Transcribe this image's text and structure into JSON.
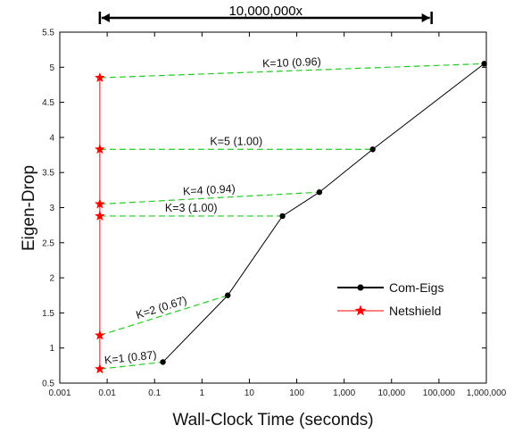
{
  "chart_data": {
    "type": "line",
    "title": "",
    "xlabel": "Wall-Clock Time (seconds)",
    "ylabel": "Eigen-Drop",
    "xscale": "log",
    "xlim": [
      0.001,
      1000000
    ],
    "ylim": [
      0.5,
      5.5
    ],
    "x_ticks": [
      "0.001",
      "0.01",
      "0.1",
      "1",
      "10",
      "100",
      "1,000",
      "10,000",
      "100,000",
      "1,000,000"
    ],
    "y_ticks": [
      "0.5",
      "1",
      "1.5",
      "2",
      "2.5",
      "3",
      "3.5",
      "4",
      "4.5",
      "5",
      "5.5"
    ],
    "series": [
      {
        "name": "Com-Eigs",
        "color": "#000000",
        "marker": "circle",
        "x": [
          0.15,
          3.5,
          50,
          300,
          4000,
          900000
        ],
        "y": [
          0.8,
          1.75,
          2.88,
          3.22,
          3.83,
          5.05
        ]
      },
      {
        "name": "Netshield",
        "color": "#ff0000",
        "marker": "star",
        "x": [
          0.007,
          0.007,
          0.007,
          0.007,
          0.007,
          0.007
        ],
        "y": [
          0.7,
          1.18,
          2.88,
          3.05,
          3.83,
          4.85
        ]
      }
    ],
    "annotations": [
      {
        "text": "K=1 (0.87)",
        "from": [
          0.007,
          0.7
        ],
        "to": [
          0.15,
          0.8
        ]
      },
      {
        "text": "K=2 (0.67)",
        "from": [
          0.007,
          1.18
        ],
        "to": [
          3.5,
          1.75
        ]
      },
      {
        "text": "K=3 (1.00)",
        "from": [
          0.007,
          2.88
        ],
        "to": [
          50,
          2.88
        ]
      },
      {
        "text": "K=4 (0.94)",
        "from": [
          0.007,
          3.05
        ],
        "to": [
          300,
          3.22
        ]
      },
      {
        "text": "K=5 (1.00)",
        "from": [
          0.007,
          3.83
        ],
        "to": [
          4000,
          3.83
        ]
      },
      {
        "text": "K=10 (0.96)",
        "from": [
          0.007,
          4.85
        ],
        "to": [
          900000,
          5.05
        ]
      }
    ],
    "span_annotation": {
      "text": "10,000,000x",
      "from_x": 0.007,
      "to_x": 70000
    },
    "legend": {
      "position": "bottom-right"
    }
  }
}
